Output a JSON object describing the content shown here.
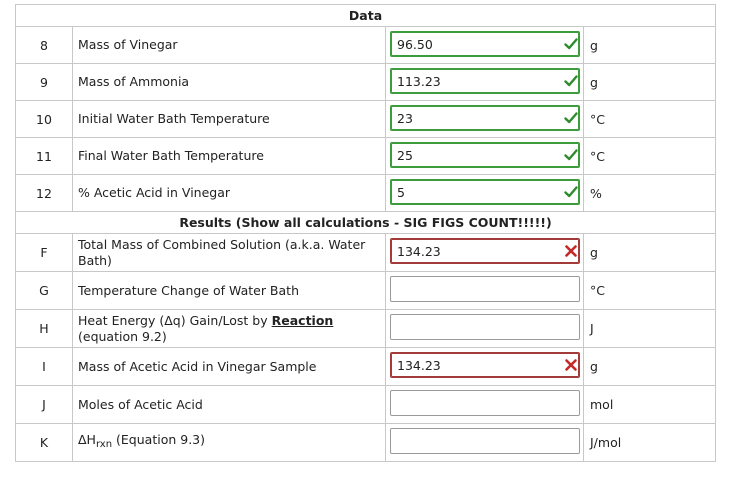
{
  "header_data": "Data",
  "header_results": "Results (Show all calculations - SIG FIGS COUNT!!!!!)",
  "data_rows": [
    {
      "num": "8",
      "label": "Mass of Vinegar",
      "value": "96.50",
      "status": "correct",
      "unit": "g"
    },
    {
      "num": "9",
      "label": "Mass of Ammonia",
      "value": "113.23",
      "status": "correct",
      "unit": "g"
    },
    {
      "num": "10",
      "label": "Initial Water Bath Temperature",
      "value": "23",
      "status": "correct",
      "unit": "°C"
    },
    {
      "num": "11",
      "label": "Final Water Bath Temperature",
      "value": "25",
      "status": "correct",
      "unit": "°C"
    },
    {
      "num": "12",
      "label": "% Acetic Acid in Vinegar",
      "value": "5",
      "status": "correct",
      "unit": "%"
    }
  ],
  "result_rows": [
    {
      "num": "F",
      "label": "Total Mass of Combined Solution (a.k.a. Water Bath)",
      "value": "134.23",
      "status": "incorrect",
      "unit": "g"
    },
    {
      "num": "G",
      "label": "Temperature Change of Water Bath",
      "value": "",
      "status": "none",
      "unit": "°C"
    },
    {
      "num": "H",
      "label_pre": "Heat Energy (Δq) Gain/Lost by ",
      "label_em": "Reaction",
      "label_post": "(equation 9.2)",
      "value": "",
      "status": "none",
      "unit": "J"
    },
    {
      "num": "I",
      "label": "Mass of Acetic Acid in Vinegar Sample",
      "value": "134.23",
      "status": "incorrect",
      "unit": "g"
    },
    {
      "num": "J",
      "label": "Moles of Acetic Acid",
      "value": "",
      "status": "none",
      "unit": "mol"
    },
    {
      "num": "K",
      "label_main": "ΔH",
      "label_sub": "rxn",
      "label_post": " (Equation 9.3)",
      "value": "",
      "status": "none",
      "unit": "J/mol"
    }
  ],
  "colors": {
    "correct": "#3c9c3c",
    "incorrect": "#a43b3b",
    "check_fill": "#2e8b2e",
    "x_fill": "#c62828"
  },
  "icons": {
    "correct": "check-icon",
    "incorrect": "x-icon"
  }
}
